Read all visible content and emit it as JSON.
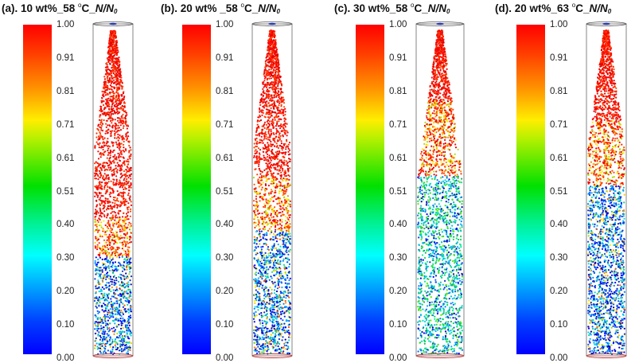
{
  "panels": [
    {
      "prefix": "(a). 10 wt%_58 ",
      "degree": "o",
      "suffix": "C_",
      "ratio_n": "N/N",
      "ratio_sub": "0",
      "profile": {
        "red_to": 0.58,
        "mix_to": 0.7,
        "base": "blue"
      }
    },
    {
      "prefix": "(b). 20 wt% _58 ",
      "degree": "o",
      "suffix": "C_",
      "ratio_n": "N/N",
      "ratio_sub": "0",
      "profile": {
        "red_to": 0.45,
        "mix_to": 0.62,
        "base": "blue-cyan"
      }
    },
    {
      "prefix": "(c). 30 wt%_58 ",
      "degree": "o",
      "suffix": "C_",
      "ratio_n": "N/N",
      "ratio_sub": "0",
      "profile": {
        "red_to": 0.22,
        "mix_to": 0.45,
        "base": "green-cyan"
      }
    },
    {
      "prefix": "(d). 20 wt%_63 ",
      "degree": "o",
      "suffix": "C_",
      "ratio_n": "N/N",
      "ratio_sub": "0",
      "profile": {
        "red_to": 0.28,
        "mix_to": 0.48,
        "base": "blue"
      }
    }
  ],
  "colorbar_ticks": [
    "1.00",
    "0.91",
    "0.81",
    "0.71",
    "0.61",
    "0.51",
    "0.40",
    "0.30",
    "0.20",
    "0.10",
    "0.00"
  ]
}
